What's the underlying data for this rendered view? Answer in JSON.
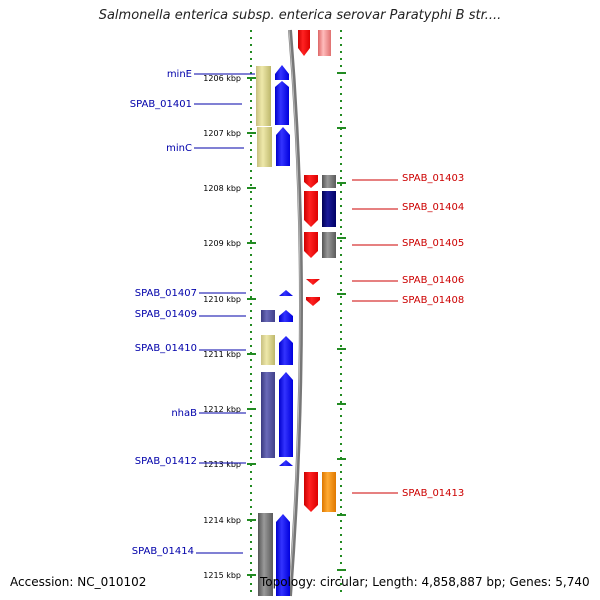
{
  "title": "Salmonella enterica subsp. enterica serovar Paratyphi B str....",
  "footer": {
    "accession": "Accession: NC_010102",
    "topology": "Topology: circular; Length: 4,858,887 bp; Genes: 5,740"
  },
  "colors": {
    "left_label": "#0000aa",
    "right_label": "#cc0000",
    "tick": "#228b22",
    "forward_cds": "#0000ff",
    "reverse_cds": "#ff0000"
  },
  "ticks": [
    "1206 kbp",
    "1207 kbp",
    "1208 kbp",
    "1209 kbp",
    "1210 kbp",
    "1211 kbp",
    "1212 kbp",
    "1213 kbp",
    "1214 kbp",
    "1215 kbp"
  ],
  "left_labels": [
    "minE",
    "SPAB_01401",
    "minC",
    "SPAB_01407",
    "SPAB_01409",
    "SPAB_01410",
    "nhaB",
    "SPAB_01412",
    "SPAB_01414"
  ],
  "right_labels": [
    "SPAB_01403",
    "SPAB_01404",
    "SPAB_01405",
    "SPAB_01406",
    "SPAB_01408",
    "SPAB_01413"
  ]
}
